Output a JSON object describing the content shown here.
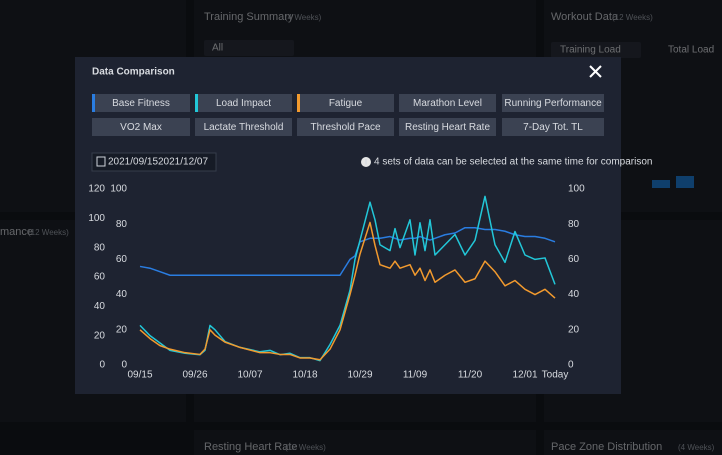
{
  "background": {
    "panels": [
      {
        "title": "Training Summary",
        "period": "(4 Weeks)"
      },
      {
        "title": "Workout Data",
        "period": "(12 Weeks)"
      },
      {
        "title": "mance",
        "period": "(12 Weeks)"
      },
      {
        "title": "Resting Heart Rate",
        "period": "(12 Weeks)"
      },
      {
        "title": "Pace Zone Distribution",
        "period": "(4 Weeks)"
      }
    ],
    "filters": [
      "All",
      "Training Load"
    ],
    "total_load_label": "Total Load"
  },
  "modal": {
    "title": "Data Comparison",
    "buttons": [
      {
        "label": "Base Fitness",
        "color": "#2a7de1"
      },
      {
        "label": "Load Impact",
        "color": "#22c7d8"
      },
      {
        "label": "Fatigue",
        "color": "#f29a2e"
      },
      {
        "label": "Marathon Level"
      },
      {
        "label": "Running Performance"
      },
      {
        "label": "VO2 Max"
      },
      {
        "label": "Lactate Threshold"
      },
      {
        "label": "Threshold Pace"
      },
      {
        "label": "Resting Heart Rate"
      },
      {
        "label": "7-Day Tot. TL"
      }
    ],
    "date_start": "2021/09/15",
    "date_end": "2021/12/07",
    "info": "4 sets of data can be selected at the same time for comparison"
  },
  "chart_data": {
    "type": "line",
    "x": [
      "09/15",
      "09/17",
      "09/19",
      "09/21",
      "09/24",
      "09/27",
      "09/28",
      "09/29",
      "09/30",
      "10/02",
      "10/05",
      "10/09",
      "10/11",
      "10/13",
      "10/15",
      "10/17",
      "10/19",
      "10/21",
      "10/23",
      "10/25",
      "10/27",
      "10/28",
      "10/29",
      "10/31",
      "11/01",
      "11/02",
      "11/04",
      "11/05",
      "11/06",
      "11/08",
      "11/09",
      "11/10",
      "11/11",
      "11/12",
      "11/13",
      "11/15",
      "11/17",
      "11/19",
      "11/21",
      "11/23",
      "11/25",
      "11/27",
      "11/29",
      "12/01",
      "12/03",
      "12/05",
      "12/07"
    ],
    "xticks": [
      "09/15",
      "09/26",
      "10/07",
      "10/18",
      "10/29",
      "11/09",
      "11/20",
      "12/01",
      {
        "value": "12/07",
        "label": "Today"
      }
    ],
    "ylim": [
      0,
      120
    ],
    "yticks": [
      0,
      20,
      40,
      60,
      80,
      100,
      120
    ],
    "ycolor": "#22c7d8",
    "y3lim": [
      0,
      100
    ],
    "y3ticks": [
      0,
      20,
      40,
      60,
      80,
      100
    ],
    "y3color": "#2a7de1",
    "y2lim": [
      0,
      100
    ],
    "y2ticks": [
      0,
      20,
      40,
      60,
      80,
      100
    ],
    "y2color": "#f29a2e",
    "series": [
      {
        "color": "#2a7de1",
        "axis": "y3",
        "values": [
          56,
          55,
          53,
          51,
          51,
          51,
          51,
          51,
          51,
          51,
          51,
          51,
          51,
          51,
          51,
          51,
          51,
          51,
          51,
          51,
          60,
          62,
          70,
          72,
          72,
          72,
          73,
          72,
          71,
          72,
          72,
          73,
          72,
          71,
          72,
          74,
          75,
          78,
          78,
          77,
          77,
          76,
          74,
          73,
          73,
          72,
          70
        ]
      },
      {
        "color": "#22c7d8",
        "axis": "y",
        "values": [
          27,
          20,
          15,
          10,
          8,
          7,
          10,
          27,
          24,
          16,
          12,
          9,
          10,
          7,
          8,
          5,
          5,
          3,
          14,
          27,
          51,
          72,
          85,
          111,
          99,
          82,
          78,
          93,
          80,
          99,
          75,
          97,
          78,
          99,
          75,
          82,
          89,
          75,
          85,
          115,
          82,
          70,
          91,
          75,
          72,
          73,
          55
        ]
      },
      {
        "color": "#f29a2e",
        "axis": "y2",
        "values": [
          20,
          15,
          11,
          9,
          7,
          6,
          9,
          20,
          17,
          13,
          10,
          7,
          7,
          6,
          6,
          4,
          4,
          3,
          9,
          20,
          40,
          51,
          63,
          81,
          68,
          57,
          55,
          59,
          55,
          57,
          51,
          55,
          48,
          54,
          47,
          51,
          54,
          47,
          49,
          59,
          53,
          45,
          48,
          43,
          40,
          43,
          38
        ]
      }
    ]
  }
}
